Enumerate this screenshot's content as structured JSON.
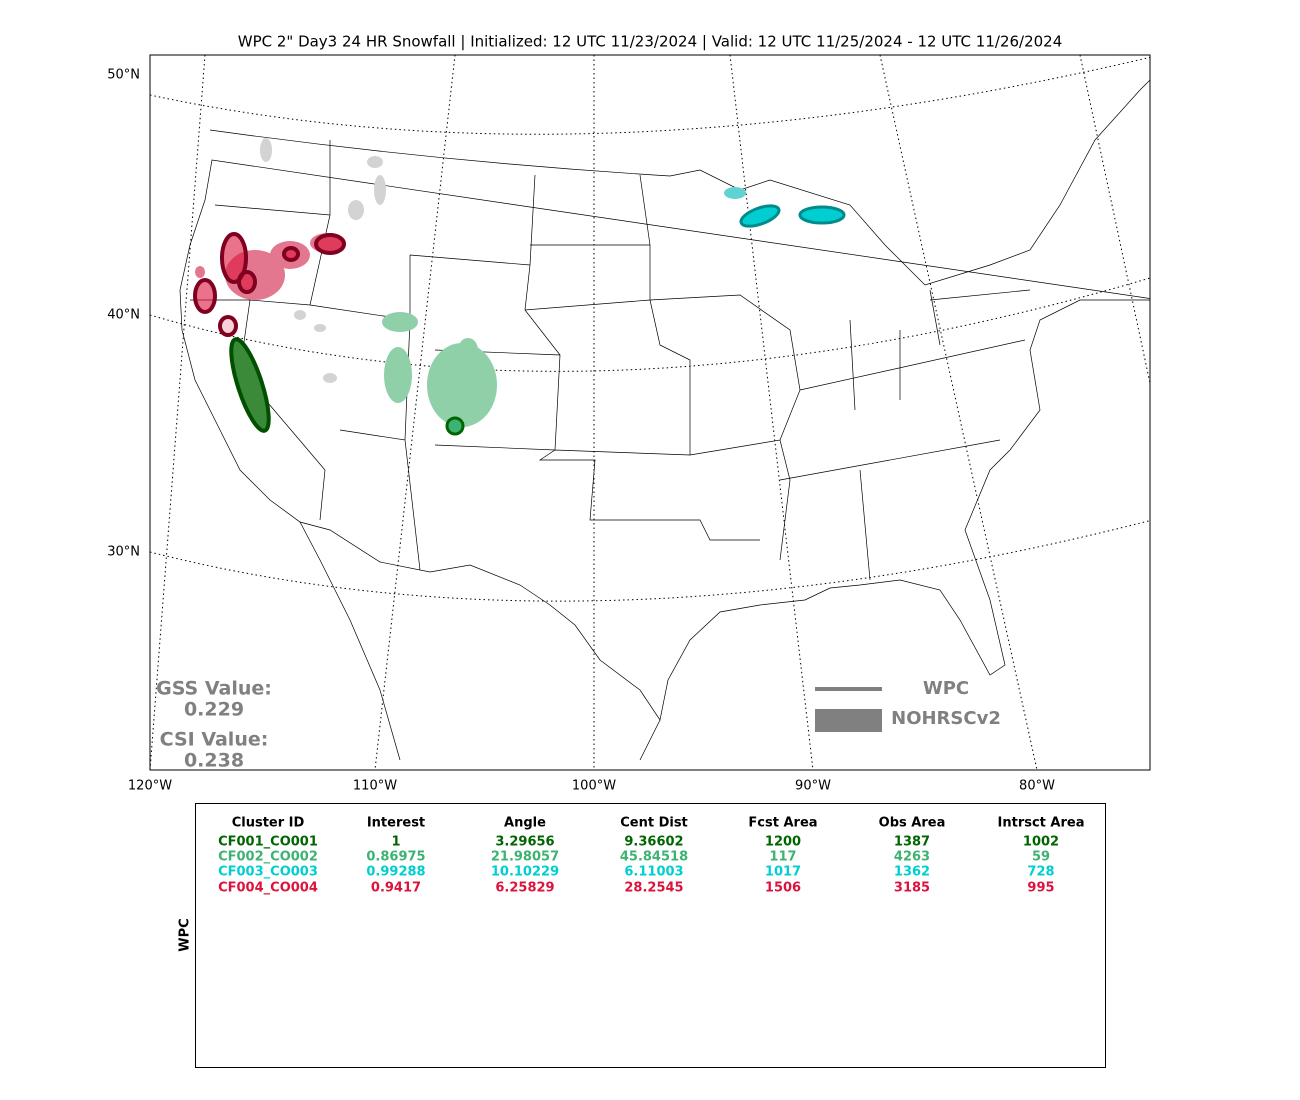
{
  "title": "WPC 2\" Day3 24 HR Snowfall | Initialized: 12 UTC 11/23/2024 | Valid: 12 UTC 11/25/2024 - 12 UTC 11/26/2024",
  "map": {
    "lat_labels": [
      "50°N",
      "40°N",
      "30°N"
    ],
    "lon_labels": [
      "120°W",
      "110°W",
      "100°W",
      "90°W",
      "80°W"
    ]
  },
  "scores": {
    "gss_label": "GSS Value:",
    "gss_value": "0.229",
    "csi_label": "CSI Value:",
    "csi_value": "0.238"
  },
  "legend": {
    "line_label": "WPC",
    "fill_label": "NOHRSCv2",
    "color": "#808080"
  },
  "table": {
    "side_label": "WPC",
    "columns": [
      "Cluster ID",
      "Interest",
      "Angle",
      "Cent Dist",
      "Fcst Area",
      "Obs Area",
      "Intrsct Area"
    ],
    "row_colors": [
      "#006400",
      "#3cb371",
      "#00ced1",
      "#dc143c"
    ],
    "rows": [
      [
        "CF001_CO001",
        "1",
        "3.29656",
        "9.36602",
        "1200",
        "1387",
        "1002"
      ],
      [
        "CF002_CO002",
        "0.86975",
        "21.98057",
        "45.84518",
        "117",
        "4263",
        "59"
      ],
      [
        "CF003_CO003",
        "0.99288",
        "10.10229",
        "6.11003",
        "1017",
        "1362",
        "728"
      ],
      [
        "CF004_CO004",
        "0.9417",
        "6.25829",
        "28.2545",
        "1506",
        "3185",
        "995"
      ]
    ]
  }
}
